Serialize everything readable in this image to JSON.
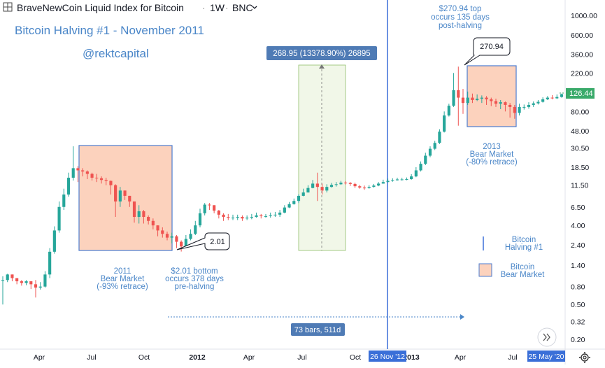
{
  "header": {
    "title": "BraveNewCoin Liquid Index for Bitcoin",
    "interval": "1W",
    "exchange": "BNC",
    "separator": "·",
    "dropdown_icon": "chevron-down-icon",
    "menu_icon": "grid-icon"
  },
  "annotations": {
    "halving_title": "Bitcoin Halving #1 - November 2011",
    "author": "@rektcapital",
    "measure_label": "268.95 (13378.90%) 26895",
    "top_callout": [
      "$270.94 top",
      "occurs 135 days",
      "post-halving"
    ],
    "top_value_label": "270.94",
    "bottom_value_label": "2.01",
    "bear2011": [
      "2011",
      "Bear Market",
      "(-93% retrace)"
    ],
    "bottom_callout": [
      "$2.01 bottom",
      "occurs 378 days",
      "pre-halving"
    ],
    "bear2013": [
      "2013",
      "Bear Market",
      "(-80% retrace)"
    ],
    "range_label": "73 bars, 511d",
    "legend_halving": [
      "Bitcoin",
      "Halving #1"
    ],
    "legend_bear": [
      "Bitcoin",
      "Bear Market"
    ]
  },
  "colors": {
    "up": "#26a69a",
    "down": "#ef5350",
    "accent": "#4a86c8",
    "label_bg": "#4f7bb5",
    "price_tag": "#3aaa6a",
    "bear_fill": "#fcd2bd",
    "measure_fill": "#f1f7e8"
  },
  "chart_data": {
    "type": "candlestick",
    "scale": "log",
    "y_axis_ticks": [
      "1000.00",
      "600.00",
      "360.00",
      "220.00",
      "140.00",
      "80.00",
      "48.00",
      "30.50",
      "18.50",
      "11.50",
      "6.50",
      "4.00",
      "2.40",
      "1.40",
      "0.80",
      "0.50",
      "0.32",
      "0.20"
    ],
    "x_axis_ticks": [
      "Apr",
      "Jul",
      "Oct",
      "2012",
      "Apr",
      "Jul",
      "Oct",
      "2013",
      "Apr",
      "Jul"
    ],
    "current_price_label": "126.44",
    "halving_date_label": "26 Nov '12",
    "cursor_date_label": "25 May '20",
    "grid": false,
    "series": [
      {
        "period": "Feb 2011 – Jul 2013 weekly",
        "closes": [
          0.95,
          1.1,
          1.0,
          0.92,
          0.88,
          0.92,
          0.85,
          0.78,
          0.8,
          1.1,
          2.0,
          3.5,
          6.5,
          9.0,
          14.0,
          18.0,
          17.0,
          16.5,
          15.5,
          14.0,
          13.8,
          13.2,
          12.9,
          11.5,
          7.5,
          10.0,
          8.7,
          7.5,
          5.0,
          5.8,
          5.0,
          4.5,
          4.0,
          3.5,
          3.2,
          2.9,
          3.0,
          2.6,
          2.3,
          2.8,
          3.2,
          4.0,
          5.5,
          6.9,
          6.8,
          5.9,
          5.3,
          5.0,
          4.9,
          4.9,
          5.0,
          4.8,
          4.9,
          5.0,
          5.2,
          5.1,
          5.1,
          5.2,
          5.3,
          5.6,
          6.4,
          7.0,
          7.6,
          8.7,
          9.5,
          10.7,
          12.0,
          11.0,
          10.0,
          11.0,
          11.6,
          11.8,
          12.3,
          12.2,
          11.9,
          11.2,
          10.8,
          10.7,
          11.0,
          11.4,
          12.0,
          12.5,
          12.9,
          13.1,
          13.4,
          13.4,
          13.5,
          14.5,
          17.0,
          20.2,
          25.0,
          30.0,
          35.0,
          47.0,
          72.0,
          93.0,
          140.0,
          115.0,
          100.0,
          115.0,
          108.0,
          112.0,
          115.0,
          110.0,
          105.0,
          98.0,
          102.0,
          95.0,
          90.0,
          77.0,
          90.0,
          90.0,
          95.0,
          99.0,
          103.0,
          110.0,
          115.0,
          113.0,
          117.0,
          126.0
        ],
        "highs": [
          1.05,
          1.12,
          1.1,
          1.0,
          0.95,
          0.95,
          0.92,
          0.95,
          0.9,
          1.2,
          2.2,
          3.9,
          7.5,
          10.5,
          16.0,
          32.0,
          19.0,
          18.0,
          17.0,
          16.0,
          15.5,
          14.5,
          14.0,
          13.0,
          11.8,
          11.0,
          10.0,
          8.5,
          7.5,
          6.8,
          6.0,
          5.2,
          4.8,
          4.0,
          3.8,
          3.4,
          3.3,
          3.1,
          2.7,
          3.1,
          3.6,
          4.5,
          6.2,
          7.2,
          7.2,
          6.8,
          6.0,
          5.5,
          5.4,
          5.3,
          5.3,
          5.2,
          5.2,
          5.4,
          5.6,
          5.4,
          5.4,
          5.6,
          5.7,
          6.0,
          6.8,
          7.4,
          8.1,
          9.1,
          10.5,
          11.5,
          13.2,
          16.0,
          12.0,
          11.8,
          12.2,
          12.5,
          12.9,
          12.8,
          12.5,
          12.3,
          11.6,
          11.4,
          11.5,
          11.9,
          12.5,
          13.3,
          13.7,
          13.8,
          14.0,
          14.0,
          14.1,
          15.4,
          18.5,
          21.5,
          27.0,
          32.0,
          37.0,
          50.0,
          80.0,
          98.0,
          220.0,
          260.0,
          145.0,
          135.0,
          128.0,
          125.0,
          122.0,
          120.0,
          115.0,
          112.0,
          108.0,
          104.0,
          100.0,
          95.0,
          98.0,
          96.0,
          102.0,
          104.0,
          108.0,
          116.0,
          120.0,
          123.0,
          125.0,
          128.0
        ],
        "lows": [
          0.5,
          0.9,
          0.92,
          0.85,
          0.82,
          0.83,
          0.75,
          0.6,
          0.74,
          0.78,
          1.0,
          1.9,
          3.3,
          6.0,
          8.5,
          13.0,
          12.5,
          14.5,
          13.5,
          13.0,
          12.5,
          12.0,
          11.5,
          9.0,
          5.0,
          6.5,
          7.8,
          6.5,
          4.3,
          4.2,
          4.2,
          4.1,
          3.6,
          3.0,
          2.9,
          2.7,
          2.5,
          2.2,
          2.01,
          2.2,
          2.7,
          3.1,
          3.8,
          5.2,
          6.0,
          5.5,
          4.8,
          4.5,
          4.6,
          4.6,
          4.6,
          4.5,
          4.6,
          4.7,
          4.9,
          4.8,
          4.9,
          4.9,
          5.0,
          5.0,
          5.5,
          6.3,
          6.9,
          7.2,
          8.6,
          9.5,
          10.6,
          7.6,
          9.0,
          9.5,
          10.8,
          11.1,
          11.6,
          11.7,
          11.3,
          10.7,
          10.5,
          10.2,
          10.5,
          10.8,
          11.2,
          12.0,
          12.4,
          12.6,
          13.0,
          13.0,
          13.1,
          13.3,
          14.2,
          16.5,
          19.5,
          24.0,
          29.0,
          34.0,
          46.0,
          70.0,
          90.0,
          55.0,
          75.0,
          95.0,
          100.0,
          105.0,
          100.0,
          95.0,
          92.0,
          90.0,
          85.0,
          80.0,
          68.0,
          66.0,
          72.0,
          84.0,
          86.0,
          90.0,
          96.0,
          101.0,
          108.0,
          110.0,
          111.0,
          115.0
        ]
      }
    ]
  }
}
